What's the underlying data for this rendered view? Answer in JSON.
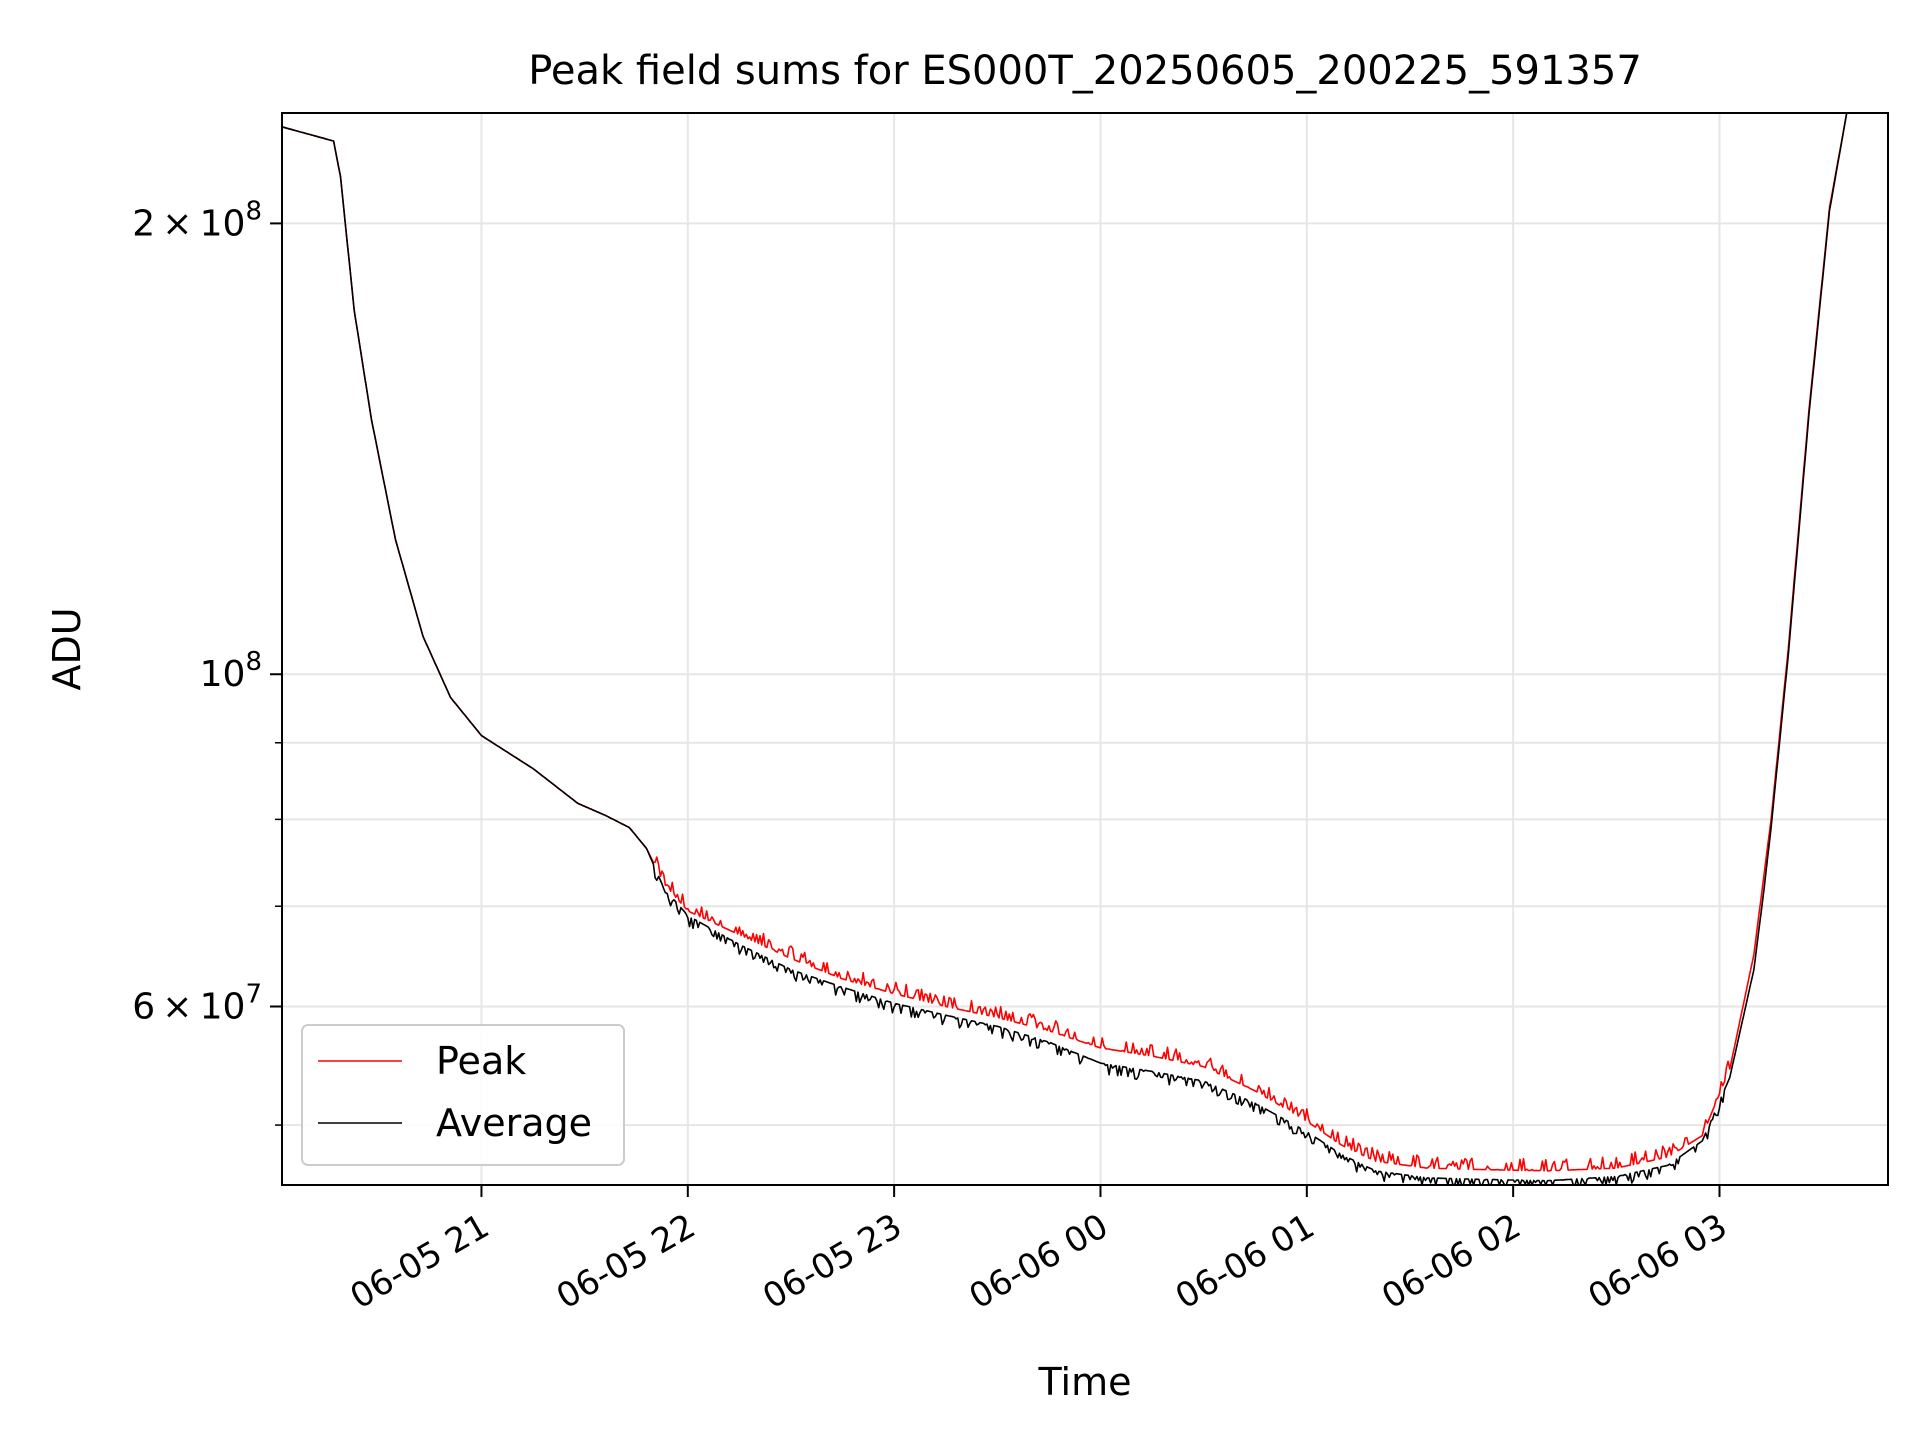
{
  "chart_data": {
    "type": "line",
    "title": "Peak field sums for ES000T_20250605_200225_591357",
    "xlabel": "Time",
    "ylabel": "ADU",
    "yscale": "log",
    "xlim": [
      "2025-06-05 20:02",
      "2025-06-06 03:49"
    ],
    "ylim": [
      45600000,
      237000000
    ],
    "grid": true,
    "legend_position": "lower-left",
    "x_ticks": [
      {
        "value": "2025-06-05 21:00",
        "label": "06-05 21"
      },
      {
        "value": "2025-06-05 22:00",
        "label": "06-05 22"
      },
      {
        "value": "2025-06-05 23:00",
        "label": "06-05 23"
      },
      {
        "value": "2025-06-06 00:00",
        "label": "06-06 00"
      },
      {
        "value": "2025-06-06 01:00",
        "label": "06-06 01"
      },
      {
        "value": "2025-06-06 02:00",
        "label": "06-06 02"
      },
      {
        "value": "2025-06-06 03:00",
        "label": "06-06 03"
      }
    ],
    "y_major_ticks": [
      {
        "value": 100000000,
        "base": "10",
        "exp": "8"
      },
      {
        "value": 200000000,
        "mantissa": "2",
        "base": "10",
        "exp": "8"
      },
      {
        "value": 60000000,
        "mantissa": "6",
        "base": "10",
        "exp": "7"
      }
    ],
    "y_minor_ticks": [
      50000000,
      70000000,
      80000000,
      90000000
    ],
    "series": [
      {
        "name": "Peak",
        "color": "#ff0000",
        "noise_above": true,
        "points": [
          [
            "2025-06-05 20:02",
            232000000
          ],
          [
            "2025-06-05 20:17",
            227000000
          ],
          [
            "2025-06-05 20:19",
            215000000
          ],
          [
            "2025-06-05 20:23",
            175000000
          ],
          [
            "2025-06-05 20:28",
            148000000
          ],
          [
            "2025-06-05 20:35",
            123000000
          ],
          [
            "2025-06-05 20:43",
            106000000
          ],
          [
            "2025-06-05 20:51",
            96500000
          ],
          [
            "2025-06-05 21:00",
            91000000
          ],
          [
            "2025-06-05 21:15",
            86500000
          ],
          [
            "2025-06-05 21:28",
            82000000
          ],
          [
            "2025-06-05 21:36",
            80500000
          ],
          [
            "2025-06-05 21:43",
            79000000
          ],
          [
            "2025-06-05 21:48",
            76500000
          ],
          [
            "2025-06-05 21:53",
            72500000
          ],
          [
            "2025-06-05 22:00",
            69500000
          ],
          [
            "2025-06-05 22:15",
            67000000
          ],
          [
            "2025-06-05 22:30",
            64600000
          ],
          [
            "2025-06-05 22:45",
            62600000
          ],
          [
            "2025-06-05 23:00",
            61200000
          ],
          [
            "2025-06-05 23:15",
            60000000
          ],
          [
            "2025-06-05 23:30",
            59000000
          ],
          [
            "2025-06-05 23:45",
            57800000
          ],
          [
            "2025-06-06 00:00",
            56300000
          ],
          [
            "2025-06-06 00:15",
            55600000
          ],
          [
            "2025-06-06 00:30",
            54700000
          ],
          [
            "2025-06-06 00:45",
            52700000
          ],
          [
            "2025-06-06 01:00",
            50300000
          ],
          [
            "2025-06-06 01:10",
            48500000
          ],
          [
            "2025-06-06 01:20",
            47300000
          ],
          [
            "2025-06-06 01:35",
            46800000
          ],
          [
            "2025-06-06 01:50",
            46700000
          ],
          [
            "2025-06-06 02:10",
            46600000
          ],
          [
            "2025-06-06 02:30",
            46800000
          ],
          [
            "2025-06-06 02:45",
            47600000
          ],
          [
            "2025-06-06 02:55",
            49200000
          ],
          [
            "2025-06-06 03:03",
            54500000
          ],
          [
            "2025-06-06 03:10",
            65000000
          ],
          [
            "2025-06-06 03:15",
            80000000
          ],
          [
            "2025-06-06 03:20",
            104000000
          ],
          [
            "2025-06-06 03:26",
            150000000
          ],
          [
            "2025-06-06 03:32",
            205000000
          ],
          [
            "2025-06-06 03:37",
            237000000
          ],
          [
            "2025-06-06 03:49",
            237000000
          ]
        ]
      },
      {
        "name": "Average",
        "color": "#000000",
        "noise_above": false,
        "points": [
          [
            "2025-06-05 20:02",
            232000000
          ],
          [
            "2025-06-05 20:17",
            227000000
          ],
          [
            "2025-06-05 20:19",
            215000000
          ],
          [
            "2025-06-05 20:23",
            175000000
          ],
          [
            "2025-06-05 20:28",
            148000000
          ],
          [
            "2025-06-05 20:35",
            123000000
          ],
          [
            "2025-06-05 20:43",
            106000000
          ],
          [
            "2025-06-05 20:51",
            96500000
          ],
          [
            "2025-06-05 21:00",
            91000000
          ],
          [
            "2025-06-05 21:15",
            86500000
          ],
          [
            "2025-06-05 21:28",
            82000000
          ],
          [
            "2025-06-05 21:36",
            80500000
          ],
          [
            "2025-06-05 21:43",
            79000000
          ],
          [
            "2025-06-05 21:48",
            76500000
          ],
          [
            "2025-06-05 21:53",
            72000000
          ],
          [
            "2025-06-05 22:00",
            69000000
          ],
          [
            "2025-06-05 22:15",
            66000000
          ],
          [
            "2025-06-05 22:30",
            63500000
          ],
          [
            "2025-06-05 22:45",
            61800000
          ],
          [
            "2025-06-05 23:00",
            60300000
          ],
          [
            "2025-06-05 23:15",
            59200000
          ],
          [
            "2025-06-05 23:30",
            58200000
          ],
          [
            "2025-06-05 23:45",
            56800000
          ],
          [
            "2025-06-06 00:00",
            55000000
          ],
          [
            "2025-06-06 00:15",
            54300000
          ],
          [
            "2025-06-06 00:30",
            53500000
          ],
          [
            "2025-06-06 00:45",
            51700000
          ],
          [
            "2025-06-06 01:00",
            49500000
          ],
          [
            "2025-06-06 01:10",
            47800000
          ],
          [
            "2025-06-06 01:20",
            46600000
          ],
          [
            "2025-06-06 01:35",
            46100000
          ],
          [
            "2025-06-06 01:50",
            46000000
          ],
          [
            "2025-06-06 02:10",
            45900000
          ],
          [
            "2025-06-06 02:30",
            46200000
          ],
          [
            "2025-06-06 02:45",
            47000000
          ],
          [
            "2025-06-06 02:55",
            48800000
          ],
          [
            "2025-06-06 03:03",
            53800000
          ],
          [
            "2025-06-06 03:10",
            63500000
          ],
          [
            "2025-06-06 03:13",
            72000000
          ],
          [
            "2025-06-06 03:15",
            79000000
          ],
          [
            "2025-06-06 03:20",
            103000000
          ],
          [
            "2025-06-06 03:26",
            149000000
          ],
          [
            "2025-06-06 03:32",
            204000000
          ],
          [
            "2025-06-06 03:37",
            237000000
          ],
          [
            "2025-06-06 03:49",
            237000000
          ]
        ]
      }
    ]
  }
}
